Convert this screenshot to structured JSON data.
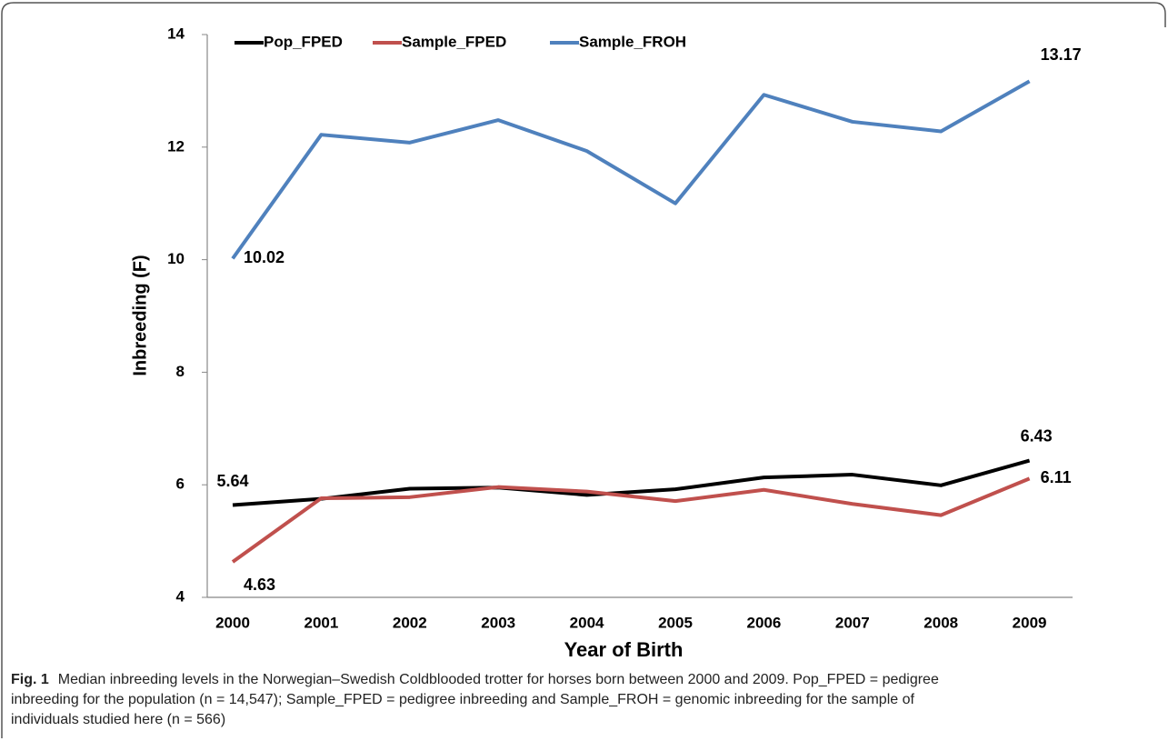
{
  "chart_data": {
    "type": "line",
    "y_label": "Inbreeding (F)",
    "x_label": "Year of Birth",
    "categories": [
      "2000",
      "2001",
      "2002",
      "2003",
      "2004",
      "2005",
      "2006",
      "2007",
      "2008",
      "2009"
    ],
    "series": [
      {
        "name": "Pop_FPED",
        "color": "#000000",
        "values": [
          5.64,
          5.75,
          5.93,
          5.95,
          5.82,
          5.92,
          6.13,
          6.18,
          5.99,
          6.43
        ]
      },
      {
        "name": "Sample_FPED",
        "color": "#c0504d",
        "values": [
          4.63,
          5.76,
          5.78,
          5.96,
          5.88,
          5.71,
          5.91,
          5.66,
          5.46,
          6.11
        ]
      },
      {
        "name": "Sample_FROH",
        "color": "#4f81bd",
        "values": [
          10.02,
          12.22,
          12.08,
          12.48,
          11.93,
          11.0,
          12.93,
          12.45,
          12.28,
          13.17
        ]
      }
    ],
    "labeled_points": [
      0,
      9
    ],
    "ylim": [
      4,
      14
    ],
    "yticks": [
      4,
      6,
      8,
      10,
      12,
      14
    ],
    "grid": false,
    "legend": "top"
  },
  "caption_label": "Fig. 1",
  "caption_lines": [
    "Median inbreeding levels in the Norwegian–Swedish Coldblooded trotter for horses born between 2000 and 2009. Pop_FPED = pedigree",
    "inbreeding for the population (n = 14,547); Sample_FPED = pedigree inbreeding and Sample_FROH = genomic inbreeding for the sample of",
    "individuals studied here (n = 566)"
  ]
}
